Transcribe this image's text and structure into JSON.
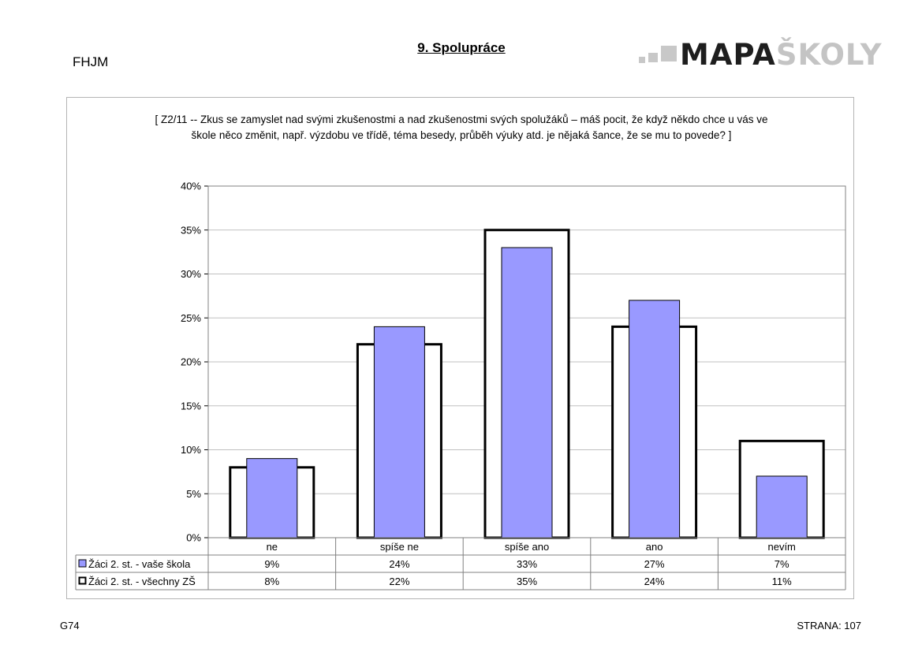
{
  "header": {
    "school_code": "FHJM",
    "page_title": "9. Spolupráce",
    "logo_text_a": "MAPA",
    "logo_text_b": "ŠKOLY"
  },
  "colors": {
    "series1_fill": "#9999ff",
    "series2_fill": "#ffffff",
    "gridline": "#c0c0c0"
  },
  "chart_data": {
    "type": "bar",
    "title": "[ Z2/11 -- Zkus se zamyslet nad svými zkušenostmi a nad zkušenostmi svých spolužáků – máš pocit, že když někdo chce u vás ve škole něco změnit, např. výzdobu ve třídě, téma besedy, průběh výuky atd. je nějaká šance, že se mu to povede? ]",
    "categories": [
      "ne",
      "spíše ne",
      "spíše ano",
      "ano",
      "nevím"
    ],
    "series": [
      {
        "name": "Žáci 2. st. - vaše škola",
        "values": [
          9,
          24,
          33,
          27,
          7
        ],
        "labels": [
          "9%",
          "24%",
          "33%",
          "27%",
          "7%"
        ]
      },
      {
        "name": "Žáci 2. st. - všechny ZŠ",
        "values": [
          8,
          22,
          35,
          24,
          11
        ],
        "labels": [
          "8%",
          "22%",
          "35%",
          "24%",
          "11%"
        ]
      }
    ],
    "y_ticks": [
      "0%",
      "5%",
      "10%",
      "15%",
      "20%",
      "25%",
      "30%",
      "35%",
      "40%"
    ],
    "ylim": [
      0,
      40
    ],
    "grid": true,
    "legend": "data-table"
  },
  "footer": {
    "left": "G74",
    "right": "STRANA: 107"
  }
}
